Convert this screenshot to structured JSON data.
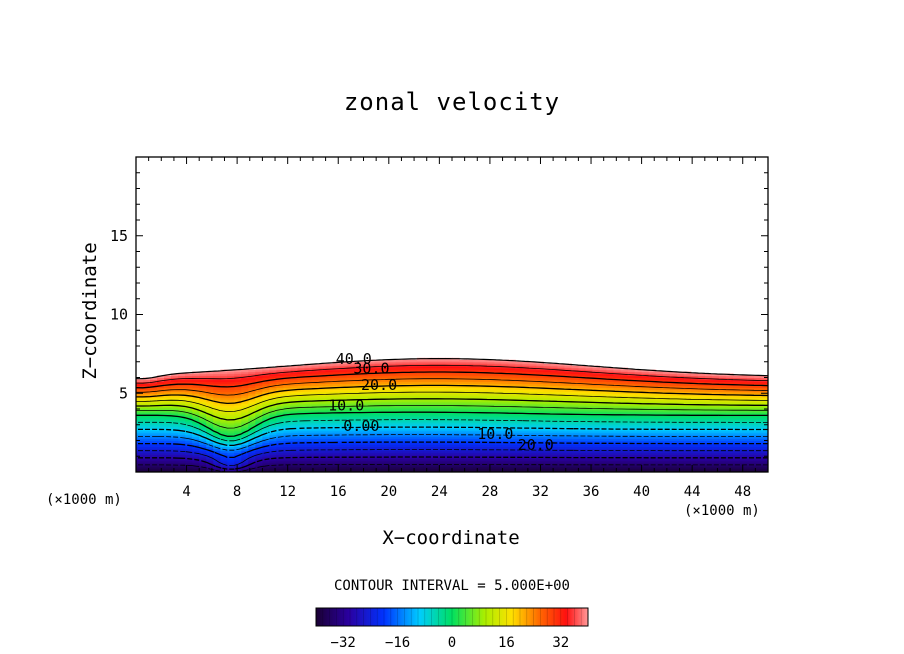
{
  "chart_data": {
    "type": "heatmap",
    "subtype": "filled-contour",
    "title": "zonal velocity",
    "xlabel": "X−coordinate",
    "ylabel": "Z−coordinate",
    "x_unit_label_left": "(×1000 m)",
    "x_unit_label_right": "(×1000 m)",
    "xlim": [
      0,
      50
    ],
    "ylim": [
      0,
      20
    ],
    "x_ticks": [
      4,
      8,
      12,
      16,
      20,
      24,
      28,
      32,
      36,
      40,
      44,
      48
    ],
    "y_ticks": [
      5,
      10,
      15
    ],
    "contour_interval_text": "CONTOUR INTERVAL = 5.000E+00",
    "contour_interval": 5,
    "contour_labels": [
      "40.0",
      "30.0",
      "20.0",
      "10.0",
      "0.00",
      "10.0",
      "20.0"
    ],
    "colorbar": {
      "range": [
        -40,
        40
      ],
      "ticks": [
        "−32",
        "−16",
        "0",
        "16",
        "32"
      ]
    },
    "jet_top_height": 7.2,
    "surface_minimum": -40,
    "jet_maximum": 40
  }
}
